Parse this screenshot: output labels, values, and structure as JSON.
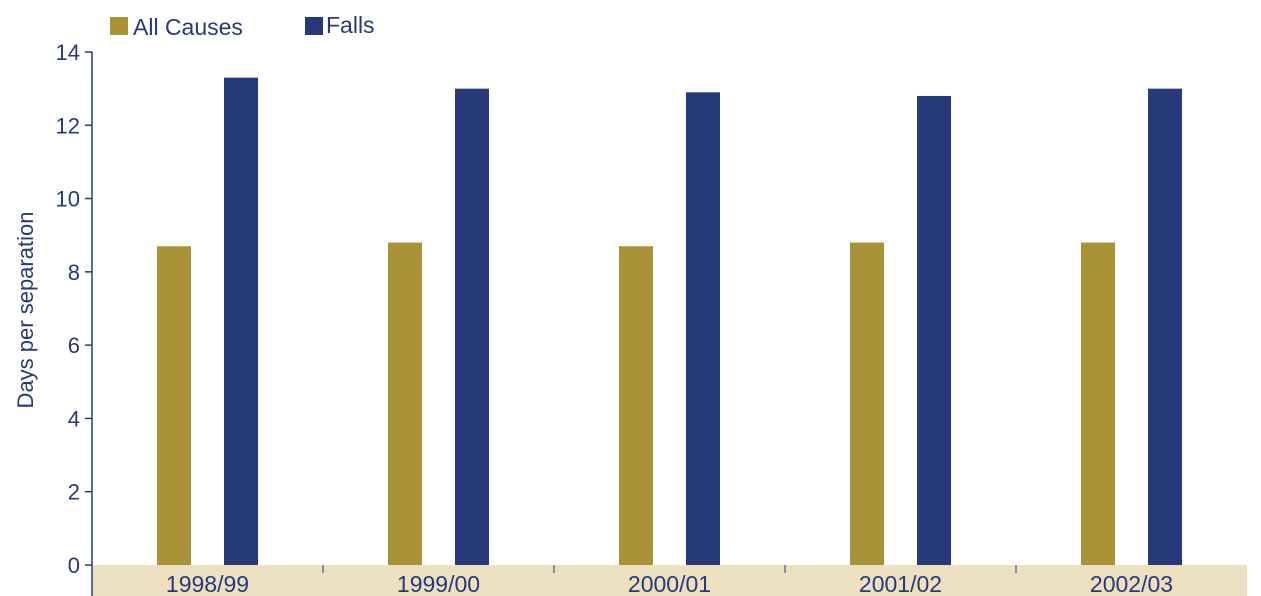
{
  "chart_data": {
    "type": "bar",
    "categories": [
      "1998/99",
      "1999/00",
      "2000/01",
      "2001/02",
      "2002/03"
    ],
    "series": [
      {
        "name": "All Causes",
        "values": [
          8.7,
          8.8,
          8.7,
          8.8,
          8.8
        ],
        "color": "#aa9238"
      },
      {
        "name": "Falls",
        "values": [
          13.3,
          13.0,
          12.9,
          12.8,
          13.0
        ],
        "color": "#263a7a"
      }
    ],
    "title": "",
    "xlabel": "",
    "ylabel": "Days per separation",
    "ylim": [
      0,
      14
    ],
    "yticks": [
      0,
      2,
      4,
      6,
      8,
      10,
      12,
      14
    ],
    "grid": false,
    "legend_position": "top-left",
    "colors": {
      "axis_text": "#263a7a",
      "axis_line": "#263a7a",
      "category_band": "#ede0c0"
    }
  }
}
